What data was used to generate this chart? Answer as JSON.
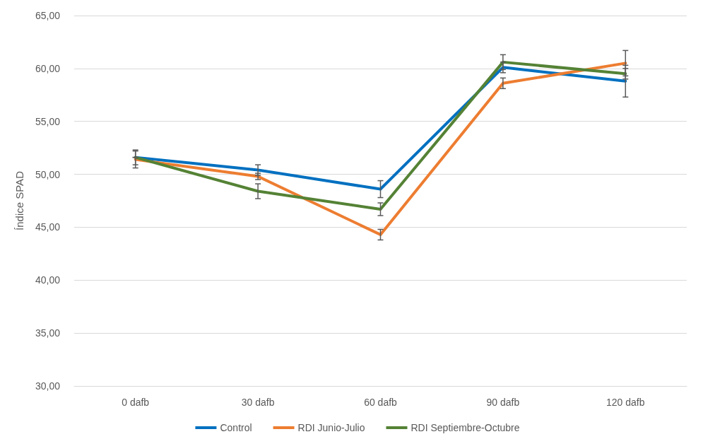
{
  "chart_data": {
    "type": "line",
    "ylabel": "Índice SPAD",
    "categories": [
      "0 dafb",
      "30 dafb",
      "60 dafb",
      "90 dafb",
      "120 dafb"
    ],
    "series": [
      {
        "name": "Control",
        "color": "#0070c0",
        "values": [
          51.6,
          50.4,
          48.6,
          60.1,
          58.8
        ],
        "errors": [
          0.7,
          0.5,
          0.8,
          0.5,
          1.5
        ]
      },
      {
        "name": "RDI Junio-Julio",
        "color": "#ed7d31",
        "values": [
          51.4,
          49.8,
          44.3,
          58.6,
          60.5
        ],
        "errors": [
          0.8,
          0.3,
          0.5,
          0.5,
          1.2
        ]
      },
      {
        "name": "RDI Septiembre-Octubre",
        "color": "#548235",
        "values": [
          51.6,
          48.4,
          46.7,
          60.6,
          59.5
        ],
        "errors": [
          null,
          0.7,
          0.6,
          0.7,
          0.5
        ]
      }
    ],
    "ylim": [
      30,
      65
    ],
    "yticks": [
      {
        "value": 30,
        "label": "30,00"
      },
      {
        "value": 35,
        "label": "35,00"
      },
      {
        "value": 40,
        "label": "40,00"
      },
      {
        "value": 45,
        "label": "45,00"
      },
      {
        "value": 50,
        "label": "50,00"
      },
      {
        "value": 55,
        "label": "55,00"
      },
      {
        "value": 60,
        "label": "60,00"
      },
      {
        "value": 65,
        "label": "65,00"
      }
    ],
    "grid": "y",
    "legend": "bottom",
    "marker": "none",
    "line_style": "solid"
  }
}
